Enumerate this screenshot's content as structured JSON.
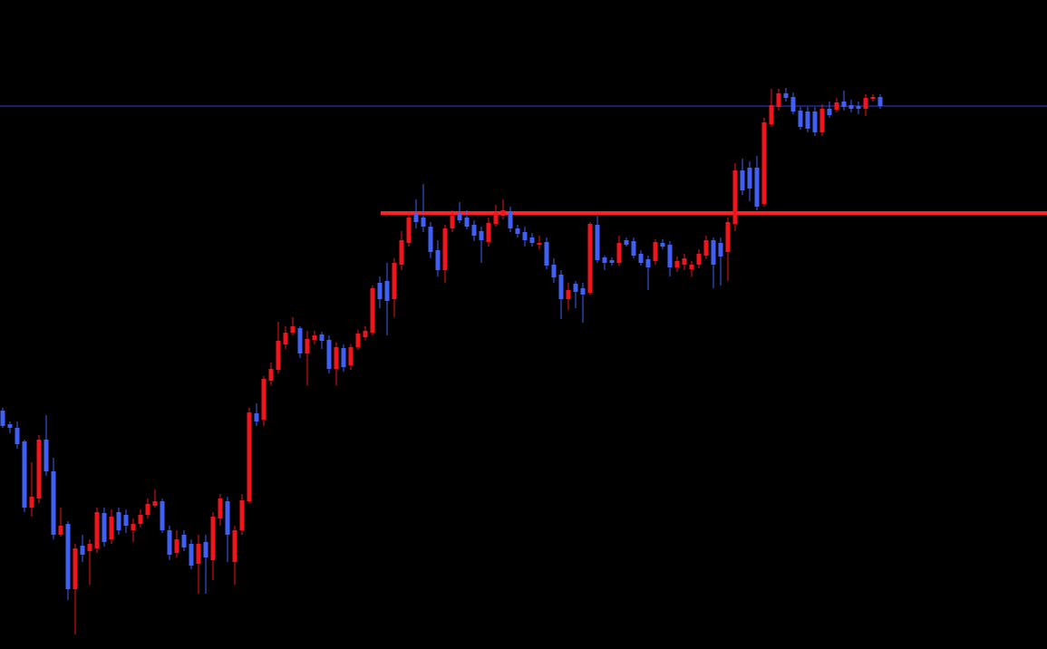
{
  "chart_data": {
    "type": "candlestick",
    "ylim": [
      0,
      716
    ],
    "up_color": "#f0141c",
    "down_color": "#3f5ff5",
    "open": [
      263,
      248,
      244,
      229,
      156,
      166,
      231,
      196,
      126,
      138,
      66,
      114,
      108,
      111,
      150,
      121,
      151,
      148,
      131,
      138,
      148,
      158,
      163,
      131,
      106,
      126,
      116,
      94,
      118,
      98,
      144,
      163,
      96,
      131,
      163,
      260,
      253,
      296,
      308,
      336,
      349,
      354,
      326,
      341,
      347,
      341,
      309,
      332,
      313,
      333,
      344,
      349,
      404,
      406,
      386,
      424,
      448,
      481,
      476,
      466,
      440,
      418,
      464,
      481,
      476,
      468,
      461,
      449,
      469,
      478,
      483,
      464,
      460,
      454,
      446,
      449,
      424,
      413,
      386,
      403,
      398,
      393,
      468,
      432,
      429,
      426,
      451,
      450,
      436,
      430,
      428,
      448,
      446,
      421,
      424,
      419,
      424,
      434,
      451,
      448,
      438,
      469,
      528,
      531,
      531,
      491,
      579,
      598,
      613,
      609,
      594,
      593,
      593,
      570,
      596,
      595,
      604,
      600,
      599,
      596,
      607,
      609
    ],
    "high": [
      266,
      251,
      251,
      231,
      206,
      236,
      258,
      211,
      156,
      141,
      116,
      126,
      121,
      156,
      156,
      154,
      156,
      154,
      144,
      154,
      166,
      176,
      166,
      136,
      131,
      131,
      121,
      126,
      126,
      151,
      171,
      168,
      136,
      171,
      266,
      271,
      301,
      316,
      361,
      356,
      366,
      356,
      351,
      351,
      350,
      346,
      338,
      336,
      336,
      352,
      356,
      401,
      411,
      426,
      431,
      461,
      481,
      496,
      513,
      471,
      451,
      468,
      484,
      493,
      484,
      473,
      466,
      476,
      490,
      496,
      488,
      468,
      466,
      459,
      456,
      454,
      431,
      418,
      404,
      406,
      404,
      471,
      478,
      434,
      432,
      456,
      454,
      454,
      440,
      434,
      452,
      452,
      450,
      433,
      436,
      428,
      441,
      456,
      454,
      454,
      476,
      536,
      541,
      538,
      544,
      586,
      618,
      618,
      619,
      614,
      598,
      598,
      598,
      601,
      604,
      608,
      616,
      606,
      604,
      612,
      612,
      612
    ],
    "low": [
      244,
      238,
      221,
      151,
      146,
      161,
      191,
      121,
      124,
      54,
      16,
      96,
      71,
      106,
      113,
      116,
      126,
      128,
      118,
      134,
      144,
      156,
      128,
      98,
      101,
      108,
      88,
      61,
      61,
      76,
      136,
      96,
      71,
      126,
      161,
      246,
      246,
      291,
      304,
      331,
      346,
      321,
      291,
      336,
      331,
      304,
      291,
      306,
      308,
      330,
      341,
      346,
      376,
      346,
      366,
      418,
      444,
      464,
      460,
      431,
      411,
      404,
      460,
      470,
      463,
      450,
      426,
      444,
      466,
      474,
      460,
      454,
      444,
      444,
      441,
      419,
      404,
      364,
      374,
      376,
      360,
      391,
      426,
      418,
      423,
      423,
      444,
      431,
      423,
      396,
      424,
      441,
      411,
      416,
      418,
      411,
      420,
      430,
      398,
      401,
      406,
      461,
      501,
      494,
      484,
      488,
      576,
      594,
      604,
      590,
      573,
      570,
      566,
      566,
      586,
      592,
      594,
      592,
      590,
      588,
      604,
      596
    ],
    "close": [
      246,
      244,
      226,
      156,
      168,
      231,
      196,
      126,
      136,
      66,
      111,
      104,
      116,
      151,
      118,
      146,
      131,
      136,
      138,
      148,
      160,
      163,
      131,
      104,
      121,
      112,
      92,
      116,
      101,
      146,
      166,
      126,
      131,
      164,
      261,
      251,
      298,
      309,
      340,
      349,
      356,
      326,
      342,
      346,
      340,
      309,
      333,
      311,
      333,
      348,
      351,
      398,
      386,
      384,
      426,
      451,
      476,
      471,
      466,
      438,
      418,
      464,
      478,
      473,
      466,
      456,
      451,
      470,
      481,
      484,
      464,
      458,
      451,
      448,
      448,
      423,
      410,
      386,
      396,
      394,
      391,
      469,
      429,
      426,
      426,
      448,
      446,
      434,
      426,
      421,
      449,
      444,
      421,
      428,
      431,
      424,
      436,
      451,
      424,
      433,
      471,
      528,
      506,
      508,
      488,
      581,
      600,
      613,
      608,
      593,
      576,
      574,
      570,
      596,
      589,
      603,
      598,
      596,
      596,
      608,
      609,
      599
    ],
    "hlines": [
      {
        "value": 599,
        "color": "#2b3fd6"
      },
      {
        "value": 481,
        "color": "#ff1f26"
      }
    ]
  }
}
